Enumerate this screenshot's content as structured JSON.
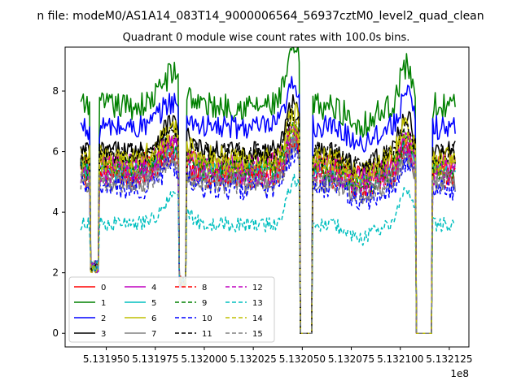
{
  "figure": {
    "title": "n file: modeM0/AS1A14_083T14_9000006564_56937cztM0_level2_quad_clean",
    "background": "#ffffff"
  },
  "chart_data": {
    "type": "line",
    "title": "Quadrant 0 module wise count rates with 100.0s bins.",
    "xlabel": "",
    "ylabel": "",
    "x_offset_label": "1e8",
    "xlim": [
      5.131929,
      5.132135
    ],
    "ylim": [
      -0.45,
      9.45
    ],
    "x_ticks": [
      5.13195,
      5.131975,
      5.132,
      5.132025,
      5.13205,
      5.132075,
      5.1321,
      5.132125
    ],
    "x_tick_labels": [
      "5.131950",
      "5.131975",
      "5.132000",
      "5.132025",
      "5.132050",
      "5.132075",
      "5.132100",
      "5.132125"
    ],
    "y_ticks": [
      0,
      2,
      4,
      6,
      8
    ],
    "y_tick_labels": [
      "0",
      "2",
      "4",
      "6",
      "8"
    ],
    "grid": false,
    "legend_position": "lower-left",
    "legend_columns": 4,
    "x_range_covered": [
      5.131937,
      5.132128
    ],
    "gaps": [
      {
        "drop_start": 5.131942,
        "drop_end": 5.131946,
        "min_value": 2.0
      },
      {
        "drop_start": 5.131987,
        "drop_end": 5.131991,
        "min_value": 1.5
      },
      {
        "drop_start": 5.132049,
        "drop_end": 5.132055,
        "min_value": 0.0
      },
      {
        "drop_start": 5.132108,
        "drop_end": 5.132116,
        "min_value": 0.0
      }
    ],
    "series": [
      {
        "name": "0",
        "color": "#ff0000",
        "style": "solid",
        "base": 5.5,
        "amp": 0.45,
        "peak": 6.4
      },
      {
        "name": "1",
        "color": "#008000",
        "style": "solid",
        "base": 7.5,
        "amp": 0.45,
        "peak": 9.0
      },
      {
        "name": "2",
        "color": "#0000ff",
        "style": "solid",
        "base": 6.8,
        "amp": 0.4,
        "peak": 8.0
      },
      {
        "name": "3",
        "color": "#000000",
        "style": "solid",
        "base": 6.0,
        "amp": 0.35,
        "peak": 7.4
      },
      {
        "name": "4",
        "color": "#bf00bf",
        "style": "solid",
        "base": 5.6,
        "amp": 0.35,
        "peak": 6.6
      },
      {
        "name": "5",
        "color": "#00bfbf",
        "style": "solid",
        "base": 5.3,
        "amp": 0.35,
        "peak": 6.2
      },
      {
        "name": "6",
        "color": "#bfbf00",
        "style": "solid",
        "base": 5.8,
        "amp": 0.4,
        "peak": 7.0
      },
      {
        "name": "7",
        "color": "#808080",
        "style": "solid",
        "base": 5.0,
        "amp": 0.35,
        "peak": 6.0
      },
      {
        "name": "8",
        "color": "#ff0000",
        "style": "dashed",
        "base": 5.2,
        "amp": 0.4,
        "peak": 6.2
      },
      {
        "name": "9",
        "color": "#008000",
        "style": "dashed",
        "base": 5.4,
        "amp": 0.4,
        "peak": 6.6
      },
      {
        "name": "10",
        "color": "#0000ff",
        "style": "dashed",
        "base": 4.8,
        "amp": 0.4,
        "peak": 5.8
      },
      {
        "name": "11",
        "color": "#000000",
        "style": "dashed",
        "base": 5.9,
        "amp": 0.4,
        "peak": 7.0
      },
      {
        "name": "12",
        "color": "#bf00bf",
        "style": "dashed",
        "base": 5.3,
        "amp": 0.4,
        "peak": 6.4
      },
      {
        "name": "13",
        "color": "#00bfbf",
        "style": "dashed",
        "base": 3.6,
        "amp": 0.25,
        "peak": 4.8
      },
      {
        "name": "14",
        "color": "#bfbf00",
        "style": "dashed",
        "base": 5.6,
        "amp": 0.4,
        "peak": 6.6
      },
      {
        "name": "15",
        "color": "#808080",
        "style": "dashed",
        "base": 5.0,
        "amp": 0.4,
        "peak": 6.0
      }
    ]
  }
}
